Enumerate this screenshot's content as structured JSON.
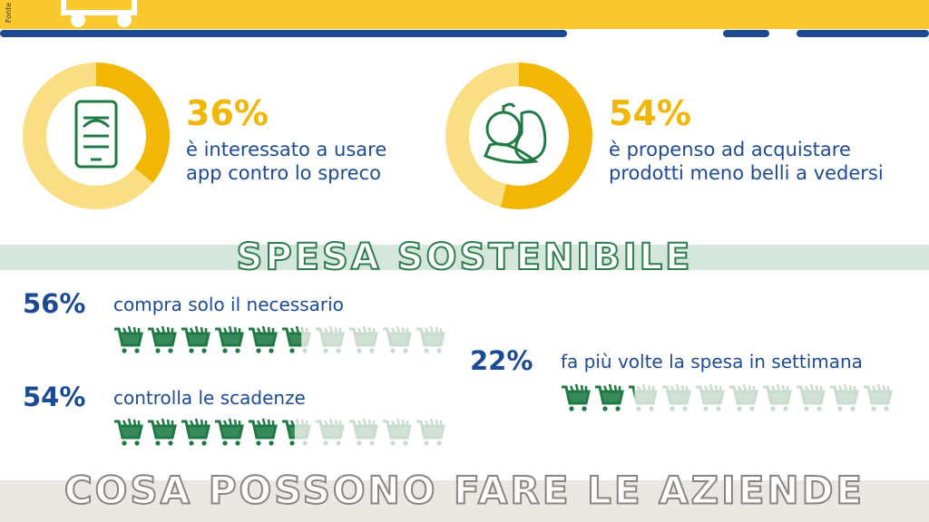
{
  "source_label": "Fonte",
  "donuts": [
    {
      "value": 36,
      "label": "36%",
      "lines": [
        "è interessato a usare",
        "app contro lo spreco"
      ]
    },
    {
      "value": 54,
      "label": "54%",
      "lines": [
        "è propenso ad acquistare",
        "prodotti meno belli a vedersi"
      ]
    }
  ],
  "section_title": "SPESA SOSTENIBILE",
  "cart_rows": [
    {
      "value": 56,
      "label": "56%",
      "text": "compra solo il necessario"
    },
    {
      "value": 54,
      "label": "54%",
      "text": "controlla le scadenze"
    },
    {
      "value": 22,
      "label": "22%",
      "text": "fa più volte la spesa in settimana"
    }
  ],
  "footer_title": "COSA POSSONO FARE LE AZIENDE"
}
